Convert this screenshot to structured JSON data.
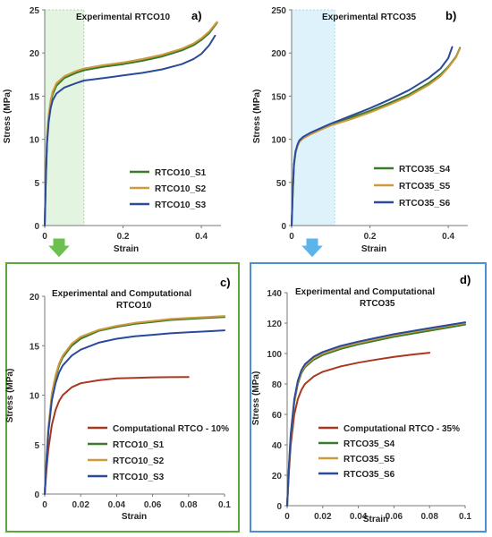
{
  "colors": {
    "green": "#3a7a2c",
    "orange": "#cf9a3c",
    "blue": "#2a4a9a",
    "red": "#a8381f",
    "frame_green": "#5aa83c",
    "frame_blue": "#4a90d8",
    "highlight_green": "#e3f4e1",
    "highlight_blue": "#def2fb",
    "arrow_green": "#6cc14e",
    "arrow_blue": "#5bb5ea"
  },
  "chart_data": [
    {
      "type": "line",
      "panel_label": "a)",
      "title": "Experimental RTCO10",
      "xlabel": "Strain",
      "ylabel": "Stress (MPa)",
      "xlim": [
        0,
        0.45
      ],
      "ylim": [
        0,
        25
      ],
      "xticks": [
        0,
        0.2,
        0.4
      ],
      "xtick_labels": [
        "0",
        "0.2",
        "0.4"
      ],
      "yticks": [
        0,
        5,
        10,
        15,
        20,
        25
      ],
      "ytick_labels": [
        "0",
        "5",
        "10",
        "15",
        "20",
        "25"
      ],
      "highlight_region": [
        0,
        0.1
      ],
      "legend_position": "bottom-right",
      "series": [
        {
          "name": "RTCO10_S1",
          "color_key": "green",
          "x": [
            0,
            0.003,
            0.006,
            0.01,
            0.015,
            0.02,
            0.03,
            0.05,
            0.08,
            0.1,
            0.15,
            0.2,
            0.25,
            0.3,
            0.35,
            0.38,
            0.4,
            0.42,
            0.44
          ],
          "y": [
            0,
            6,
            10,
            12.5,
            14.2,
            15.2,
            16.2,
            17.1,
            17.7,
            18.0,
            18.4,
            18.7,
            19.1,
            19.6,
            20.3,
            20.9,
            21.5,
            22.3,
            23.5
          ]
        },
        {
          "name": "RTCO10_S2",
          "color_key": "orange",
          "x": [
            0,
            0.003,
            0.006,
            0.01,
            0.015,
            0.02,
            0.03,
            0.05,
            0.08,
            0.1,
            0.15,
            0.2,
            0.25,
            0.3,
            0.35,
            0.38,
            0.4,
            0.42,
            0.44
          ],
          "y": [
            0,
            6.2,
            10.2,
            12.8,
            14.5,
            15.5,
            16.5,
            17.3,
            17.9,
            18.2,
            18.6,
            18.9,
            19.3,
            19.8,
            20.5,
            21.1,
            21.7,
            22.5,
            23.6
          ]
        },
        {
          "name": "RTCO10_S3",
          "color_key": "blue",
          "x": [
            0,
            0.003,
            0.006,
            0.01,
            0.015,
            0.02,
            0.03,
            0.05,
            0.08,
            0.1,
            0.15,
            0.2,
            0.25,
            0.3,
            0.35,
            0.38,
            0.4,
            0.42,
            0.435
          ],
          "y": [
            0,
            5.5,
            9.5,
            12,
            13.6,
            14.5,
            15.3,
            16.0,
            16.5,
            16.8,
            17.1,
            17.4,
            17.7,
            18.1,
            18.7,
            19.3,
            19.9,
            20.9,
            22.0
          ]
        }
      ]
    },
    {
      "type": "line",
      "panel_label": "b)",
      "title": "Experimental RTCO35",
      "xlabel": "Strain",
      "ylabel": "Stress (MPa)",
      "xlim": [
        0,
        0.45
      ],
      "ylim": [
        0,
        250
      ],
      "xticks": [
        0,
        0.2,
        0.4
      ],
      "xtick_labels": [
        "0",
        "0.2",
        "0.4"
      ],
      "yticks": [
        0,
        50,
        100,
        150,
        200,
        250
      ],
      "ytick_labels": [
        "0",
        "50",
        "100",
        "150",
        "200",
        "250"
      ],
      "highlight_region": [
        0,
        0.11
      ],
      "legend_position": "bottom-right",
      "series": [
        {
          "name": "RTCO35_S4",
          "color_key": "green",
          "x": [
            0,
            0.003,
            0.006,
            0.01,
            0.015,
            0.02,
            0.03,
            0.05,
            0.08,
            0.1,
            0.15,
            0.2,
            0.25,
            0.3,
            0.35,
            0.38,
            0.4,
            0.42,
            0.43
          ],
          "y": [
            0,
            40,
            70,
            85,
            93,
            98,
            102,
            107,
            113,
            117,
            125,
            133,
            142,
            152,
            165,
            175,
            184,
            196,
            206
          ]
        },
        {
          "name": "RTCO35_S5",
          "color_key": "orange",
          "x": [
            0,
            0.003,
            0.006,
            0.01,
            0.015,
            0.02,
            0.03,
            0.05,
            0.08,
            0.1,
            0.15,
            0.2,
            0.25,
            0.3,
            0.35,
            0.38,
            0.4,
            0.42,
            0.43
          ],
          "y": [
            0,
            39,
            69,
            84,
            92,
            97,
            101,
            106,
            112,
            116,
            123,
            131,
            140,
            150,
            163,
            173,
            183,
            195,
            205
          ]
        },
        {
          "name": "RTCO35_S6",
          "color_key": "blue",
          "x": [
            0,
            0.003,
            0.006,
            0.01,
            0.015,
            0.02,
            0.03,
            0.05,
            0.08,
            0.1,
            0.15,
            0.2,
            0.25,
            0.3,
            0.35,
            0.38,
            0.4,
            0.41
          ],
          "y": [
            0,
            41,
            71,
            86,
            94,
            99,
            103,
            108,
            114,
            118,
            127,
            136,
            146,
            157,
            171,
            182,
            194,
            207
          ]
        }
      ]
    },
    {
      "type": "line",
      "panel_label": "c)",
      "title": "Experimental and Computational RTCO10",
      "title_lines": [
        "Experimental and Computational",
        "RTCO10"
      ],
      "xlabel": "Strain",
      "ylabel": "Stress (MPa)",
      "xlim": [
        0,
        0.1
      ],
      "ylim": [
        0,
        20
      ],
      "xticks": [
        0,
        0.02,
        0.04,
        0.06,
        0.08,
        0.1
      ],
      "xtick_labels": [
        "0",
        "0.02",
        "0.04",
        "0.06",
        "0.08",
        "0.1"
      ],
      "yticks": [
        0,
        5,
        10,
        15,
        20
      ],
      "ytick_labels": [
        "0",
        "5",
        "10",
        "15",
        "20"
      ],
      "legend_position": "bottom-right",
      "series": [
        {
          "name": "Computational RTCO - 10%",
          "color_key": "red",
          "x": [
            0,
            0.001,
            0.002,
            0.004,
            0.006,
            0.008,
            0.01,
            0.015,
            0.02,
            0.03,
            0.04,
            0.05,
            0.06,
            0.07,
            0.08
          ],
          "y": [
            0,
            2.5,
            4.5,
            7,
            8.5,
            9.4,
            10.0,
            10.8,
            11.2,
            11.5,
            11.7,
            11.75,
            11.8,
            11.82,
            11.83
          ]
        },
        {
          "name": "RTCO10_S1",
          "color_key": "green",
          "x": [
            0,
            0.001,
            0.002,
            0.004,
            0.006,
            0.008,
            0.01,
            0.015,
            0.02,
            0.03,
            0.04,
            0.05,
            0.06,
            0.07,
            0.08,
            0.09,
            0.1
          ],
          "y": [
            0,
            3.5,
            6.5,
            10,
            11.8,
            13.0,
            13.8,
            15.0,
            15.7,
            16.5,
            16.9,
            17.2,
            17.4,
            17.6,
            17.7,
            17.8,
            17.9
          ]
        },
        {
          "name": "RTCO10_S2",
          "color_key": "orange",
          "x": [
            0,
            0.001,
            0.002,
            0.004,
            0.006,
            0.008,
            0.01,
            0.015,
            0.02,
            0.03,
            0.04,
            0.05,
            0.06,
            0.07,
            0.08,
            0.09,
            0.1
          ],
          "y": [
            0,
            3.6,
            6.7,
            10.2,
            12.0,
            13.2,
            14.0,
            15.2,
            15.9,
            16.6,
            17.0,
            17.3,
            17.5,
            17.7,
            17.8,
            17.9,
            18.0
          ]
        },
        {
          "name": "RTCO10_S3",
          "color_key": "blue",
          "x": [
            0,
            0.001,
            0.002,
            0.004,
            0.006,
            0.008,
            0.01,
            0.015,
            0.02,
            0.03,
            0.04,
            0.05,
            0.06,
            0.07,
            0.08,
            0.09,
            0.1
          ],
          "y": [
            0,
            3.3,
            6.2,
            9.5,
            11.2,
            12.3,
            13.0,
            14.0,
            14.6,
            15.3,
            15.7,
            15.95,
            16.1,
            16.25,
            16.35,
            16.45,
            16.55
          ]
        }
      ]
    },
    {
      "type": "line",
      "panel_label": "d)",
      "title": "Experimental and Computational RTCO35",
      "title_lines": [
        "Experimental and Computational",
        "RTCO35"
      ],
      "xlabel": "Strain",
      "ylabel": "Stress (MPa)",
      "xlim": [
        0,
        0.1
      ],
      "ylim": [
        0,
        140
      ],
      "xticks": [
        0,
        0.02,
        0.04,
        0.06,
        0.08,
        0.1
      ],
      "xtick_labels": [
        "0",
        "0.02",
        "0.04",
        "0.06",
        "0.08",
        "0.1"
      ],
      "yticks": [
        0,
        20,
        40,
        60,
        80,
        100,
        120,
        140
      ],
      "ytick_labels": [
        "0",
        "20",
        "40",
        "60",
        "80",
        "100",
        "120",
        "140"
      ],
      "legend_position": "bottom-right",
      "series": [
        {
          "name": "Computational RTCO - 35%",
          "color_key": "red",
          "x": [
            0,
            0.001,
            0.002,
            0.004,
            0.006,
            0.008,
            0.01,
            0.015,
            0.02,
            0.03,
            0.04,
            0.05,
            0.06,
            0.07,
            0.08
          ],
          "y": [
            0,
            22,
            40,
            60,
            70,
            76,
            80,
            85,
            88,
            91.5,
            94,
            96,
            97.8,
            99.3,
            100.5
          ]
        },
        {
          "name": "RTCO35_S4",
          "color_key": "green",
          "x": [
            0,
            0.001,
            0.002,
            0.004,
            0.006,
            0.008,
            0.01,
            0.015,
            0.02,
            0.03,
            0.04,
            0.05,
            0.06,
            0.07,
            0.08,
            0.09,
            0.1
          ],
          "y": [
            0,
            25,
            45,
            68,
            80,
            87,
            91,
            96,
            99,
            103,
            106,
            108.5,
            111,
            113,
            115,
            117,
            119
          ]
        },
        {
          "name": "RTCO35_S5",
          "color_key": "orange",
          "x": [
            0,
            0.001,
            0.002,
            0.004,
            0.006,
            0.008,
            0.01,
            0.015,
            0.02,
            0.03,
            0.04,
            0.05,
            0.06,
            0.07,
            0.08,
            0.09,
            0.1
          ],
          "y": [
            0,
            25.5,
            46,
            69,
            81,
            88,
            92,
            97,
            100,
            104,
            107,
            109.5,
            112,
            114,
            116,
            118,
            120
          ]
        },
        {
          "name": "RTCO35_S6",
          "color_key": "blue",
          "x": [
            0,
            0.001,
            0.002,
            0.004,
            0.006,
            0.008,
            0.01,
            0.015,
            0.02,
            0.03,
            0.04,
            0.05,
            0.06,
            0.07,
            0.08,
            0.09,
            0.1
          ],
          "y": [
            0,
            26,
            47,
            70,
            82,
            89,
            93,
            98,
            101,
            105,
            107.8,
            110.3,
            112.7,
            114.7,
            116.7,
            118.6,
            120.5
          ]
        }
      ]
    }
  ]
}
